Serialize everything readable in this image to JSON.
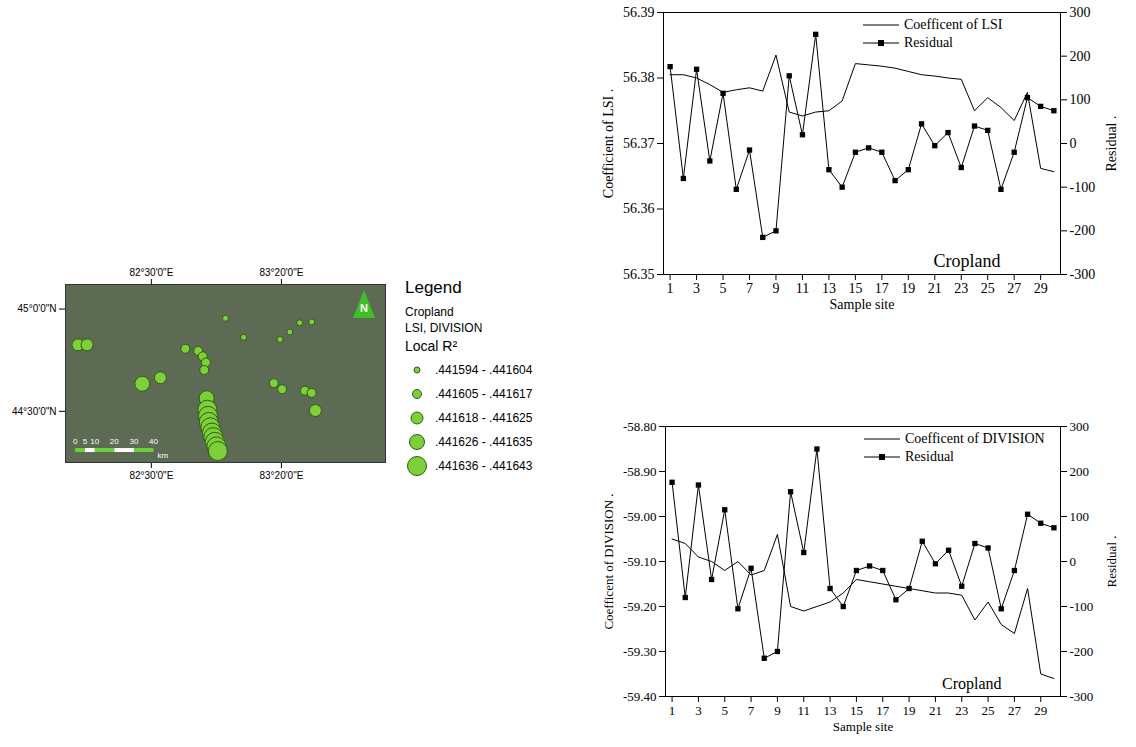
{
  "chart_data": [
    {
      "type": "map",
      "legend_title": "Legend",
      "legend_lines": [
        "Cropland",
        "LSI, DIVISION"
      ],
      "size_title": "Local R²",
      "classes": [
        ".441594 - .441604",
        ".441605 - .441617",
        ".441618 - .441625",
        ".441626 - .441635",
        ".441636 - .441643"
      ],
      "x": [
        82.03,
        82.088,
        82.442,
        82.558,
        82.718,
        82.8,
        82.829,
        82.849,
        82.839,
        82.975,
        83.091,
        83.324,
        83.387,
        83.45,
        83.527,
        83.285,
        83.338,
        83.484,
        83.527,
        83.551,
        82.854,
        82.859,
        82.863,
        82.868,
        82.878,
        82.888,
        82.897,
        82.907,
        82.917,
        82.926
      ],
      "y": [
        44.825,
        44.825,
        44.635,
        44.664,
        44.806,
        44.795,
        44.769,
        44.739,
        44.702,
        44.955,
        44.862,
        44.851,
        44.888,
        44.933,
        44.937,
        44.638,
        44.608,
        44.601,
        44.59,
        44.504,
        44.564,
        44.508,
        44.478,
        44.448,
        44.422,
        44.396,
        44.374,
        44.351,
        44.329,
        44.306
      ],
      "point_class": [
        ".441618 - .441625",
        ".441618 - .441625",
        ".441626 - .441635",
        ".441618 - .441625",
        ".441605 - .441617",
        ".441605 - .441617",
        ".441605 - .441617",
        ".441605 - .441617",
        ".441605 - .441617",
        ".441594 - .441604",
        ".441594 - .441604",
        ".441594 - .441604",
        ".441594 - .441604",
        ".441594 - .441604",
        ".441594 - .441604",
        ".441605 - .441617",
        ".441605 - .441617",
        ".441605 - .441617",
        ".441605 - .441617",
        ".441618 - .441625",
        ".441626 - .441635",
        ".441636 - .441643",
        ".441636 - .441643",
        ".441636 - .441643",
        ".441636 - .441643",
        ".441636 - .441643",
        ".441636 - .441643",
        ".441636 - .441643",
        ".441636 - .441643",
        ".441636 - .441643"
      ],
      "color": "#7ed03a",
      "xlim": [
        81.95,
        84.0
      ],
      "xticks": [
        {
          "value": 82.5,
          "label": "82°30'0\"E"
        },
        {
          "value": 83.3333,
          "label": "83°20'0\"E"
        }
      ],
      "ylim": [
        44.25,
        45.12
      ],
      "yticks": [
        {
          "value": 44.5,
          "label": "44°30'0\"N"
        },
        {
          "value": 45,
          "label": "45°0'0\"N"
        }
      ],
      "north_label": "N",
      "scale_bar": {
        "ticks": [
          0,
          5,
          10,
          20,
          30,
          40
        ],
        "unit": "km"
      },
      "legend": "right"
    },
    {
      "type": "line",
      "x": [
        1,
        2,
        3,
        4,
        5,
        6,
        7,
        8,
        9,
        10,
        11,
        12,
        13,
        14,
        15,
        16,
        17,
        18,
        19,
        20,
        21,
        22,
        23,
        24,
        25,
        26,
        27,
        28,
        29,
        30
      ],
      "xlim": [
        0.5,
        30.5
      ],
      "xticks": [
        1,
        3,
        5,
        7,
        9,
        11,
        13,
        15,
        17,
        19,
        21,
        23,
        25,
        27,
        29
      ],
      "xlabel": "Sample site",
      "ylabel": "Coefficient of LSI .",
      "ylim": [
        56.35,
        56.39
      ],
      "yticks": [
        56.35,
        56.36,
        56.37,
        56.38,
        56.39
      ],
      "y2label": "Residual .",
      "y2lim": [
        -300,
        300
      ],
      "y2ticks": [
        -300,
        -200,
        -100,
        0,
        100,
        200,
        300
      ],
      "annotation": "Cropland",
      "legend": "top-right",
      "series": [
        {
          "name": "Coefficent of LSI",
          "color": "#000000",
          "line_style": "solid",
          "values": [
            56.3805,
            56.3805,
            56.38,
            56.379,
            56.3778,
            56.3782,
            56.3785,
            56.378,
            56.3835,
            56.3748,
            56.3742,
            56.3748,
            56.375,
            56.3765,
            56.3822,
            56.382,
            56.3818,
            56.3815,
            56.381,
            56.3805,
            56.3803,
            56.38,
            56.3798,
            56.375,
            56.377,
            56.3755,
            56.3735,
            56.3778,
            56.3662,
            56.3657
          ]
        },
        {
          "name": "Residual",
          "color": "#000000",
          "axis": "y2",
          "marker": "square",
          "line_style": "solid",
          "values": [
            176,
            -80,
            170,
            -40,
            115,
            -105,
            -15,
            -215,
            -200,
            155,
            20,
            250,
            -60,
            -100,
            -20,
            -10,
            -20,
            -85,
            -60,
            45,
            -5,
            25,
            -55,
            40,
            30,
            -105,
            -20,
            105,
            85,
            75
          ]
        }
      ]
    },
    {
      "type": "line",
      "x": [
        1,
        2,
        3,
        4,
        5,
        6,
        7,
        8,
        9,
        10,
        11,
        12,
        13,
        14,
        15,
        16,
        17,
        18,
        19,
        20,
        21,
        22,
        23,
        24,
        25,
        26,
        27,
        28,
        29,
        30
      ],
      "xlim": [
        0.5,
        30.5
      ],
      "xticks": [
        1,
        3,
        5,
        7,
        9,
        11,
        13,
        15,
        17,
        19,
        21,
        23,
        25,
        27,
        29
      ],
      "xlabel": "Sample site",
      "ylabel": "Coefficent of DIVISION .",
      "ylim": [
        -59.4,
        -58.8
      ],
      "yticks": [
        {
          "value": -59.4,
          "label": "-59.40"
        },
        {
          "value": -59.3,
          "label": "-59.30"
        },
        {
          "value": -59.2,
          "label": "-59.20"
        },
        {
          "value": -59.1,
          "label": "-59.10"
        },
        {
          "value": -59.0,
          "label": "-59.00"
        },
        {
          "value": -58.9,
          "label": "-58.90"
        },
        {
          "value": -58.8,
          "label": "-58.80"
        }
      ],
      "y2label": "Residual .",
      "y2lim": [
        -300,
        300
      ],
      "y2ticks": [
        -300,
        -200,
        -100,
        0,
        100,
        200,
        300
      ],
      "annotation": "Cropland",
      "legend": "top-right",
      "series": [
        {
          "name": "Coefficent of DIVISION",
          "color": "#000000",
          "line_style": "solid",
          "values": [
            -59.05,
            -59.06,
            -59.09,
            -59.1,
            -59.12,
            -59.1,
            -59.13,
            -59.12,
            -59.04,
            -59.2,
            -59.21,
            -59.2,
            -59.19,
            -59.17,
            -59.14,
            -59.145,
            -59.15,
            -59.155,
            -59.16,
            -59.165,
            -59.17,
            -59.17,
            -59.175,
            -59.23,
            -59.19,
            -59.24,
            -59.26,
            -59.16,
            -59.35,
            -59.36
          ]
        },
        {
          "name": "Residual",
          "color": "#000000",
          "axis": "y2",
          "marker": "square",
          "line_style": "solid",
          "values": [
            176,
            -80,
            170,
            -40,
            115,
            -105,
            -15,
            -215,
            -200,
            155,
            20,
            250,
            -60,
            -100,
            -20,
            -10,
            -20,
            -85,
            -60,
            45,
            -5,
            25,
            -55,
            40,
            30,
            -105,
            -20,
            105,
            85,
            75
          ]
        }
      ]
    }
  ]
}
